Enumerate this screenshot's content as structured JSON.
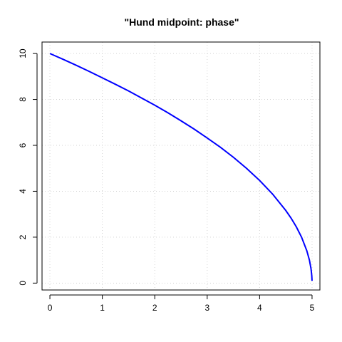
{
  "chart_data": {
    "type": "line",
    "title": "\"Hund midpoint: phase\"",
    "xlabel": "",
    "ylabel": "",
    "xlim": [
      -0.15,
      5.15
    ],
    "ylim": [
      -0.3,
      10.5
    ],
    "x_ticks": [
      0,
      1,
      2,
      3,
      4,
      5
    ],
    "y_ticks": [
      0,
      2,
      4,
      6,
      8,
      10
    ],
    "grid": true,
    "series": [
      {
        "color": "#0000ff",
        "x": [
          0,
          0.25,
          0.5,
          0.75,
          1.0,
          1.25,
          1.5,
          1.75,
          2.0,
          2.25,
          2.5,
          2.75,
          3.0,
          3.25,
          3.5,
          3.75,
          4.0,
          4.25,
          4.5,
          4.6,
          4.7,
          4.8,
          4.9,
          4.95,
          4.98,
          4.995,
          5.0
        ],
        "y": [
          10.0,
          9.75,
          9.49,
          9.22,
          8.94,
          8.66,
          8.37,
          8.06,
          7.75,
          7.42,
          7.07,
          6.71,
          6.32,
          5.92,
          5.48,
          5.0,
          4.47,
          3.87,
          3.16,
          2.83,
          2.45,
          2.0,
          1.41,
          1.0,
          0.63,
          0.32,
          0.1
        ]
      }
    ]
  }
}
